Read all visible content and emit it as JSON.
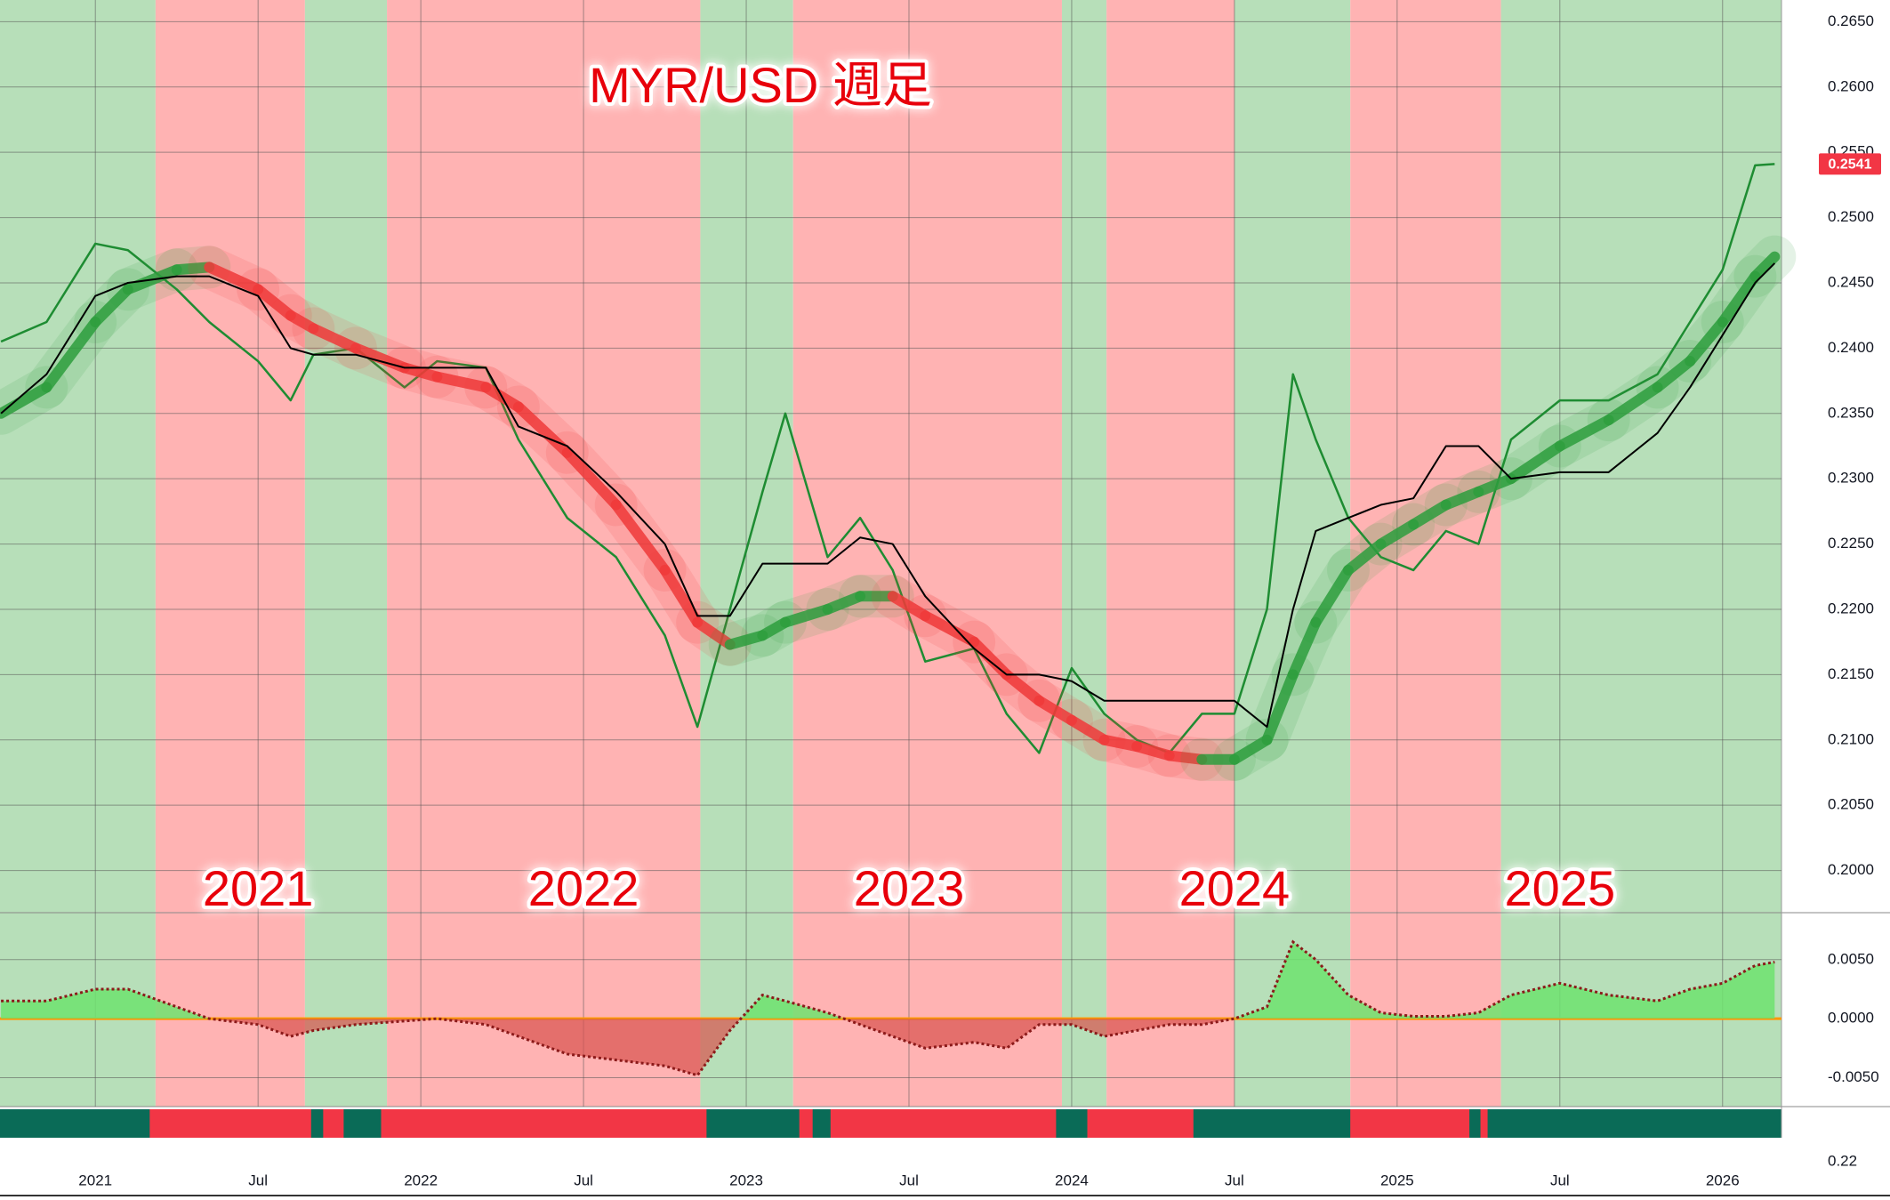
{
  "chart_data": {
    "type": "line",
    "title": "MYR/USD 週足",
    "annotations": [
      "2021",
      "2022",
      "2023",
      "2024",
      "2025"
    ],
    "annotation_color": "#e8000b",
    "x": [
      2020.71,
      2020.85,
      2021.0,
      2021.1,
      2021.25,
      2021.35,
      2021.5,
      2021.6,
      2021.67,
      2021.8,
      2021.95,
      2022.05,
      2022.2,
      2022.3,
      2022.45,
      2022.6,
      2022.75,
      2022.85,
      2022.95,
      2023.05,
      2023.12,
      2023.25,
      2023.35,
      2023.45,
      2023.55,
      2023.7,
      2023.8,
      2023.9,
      2024.0,
      2024.1,
      2024.2,
      2024.3,
      2024.4,
      2024.5,
      2024.6,
      2024.68,
      2024.75,
      2024.85,
      2024.95,
      2025.05,
      2025.15,
      2025.25,
      2025.35,
      2025.5,
      2025.65,
      2025.8,
      2025.9,
      2026.0,
      2026.1,
      2026.16
    ],
    "series": [
      {
        "color": "#1e8c32",
        "width": 2.5,
        "values": [
          0.2405,
          0.242,
          0.248,
          0.2475,
          0.2445,
          0.242,
          0.239,
          0.236,
          0.2395,
          0.24,
          0.237,
          0.239,
          0.2385,
          0.233,
          0.227,
          0.224,
          0.218,
          0.211,
          0.22,
          0.229,
          0.235,
          0.224,
          0.227,
          0.223,
          0.216,
          0.217,
          0.212,
          0.209,
          0.2155,
          0.212,
          0.21,
          0.209,
          0.212,
          0.212,
          0.22,
          0.238,
          0.233,
          0.227,
          0.224,
          0.223,
          0.226,
          0.225,
          0.233,
          0.236,
          0.236,
          0.238,
          0.242,
          0.246,
          0.254,
          0.2541
        ]
      },
      {
        "color": "#2e9e3e",
        "color_down": "#f03a3a",
        "width": 12,
        "style": "ma",
        "values": [
          0.235,
          0.237,
          0.242,
          0.2445,
          0.246,
          0.2462,
          0.2445,
          0.2425,
          0.2415,
          0.24,
          0.2385,
          0.2378,
          0.237,
          0.2355,
          0.232,
          0.228,
          0.223,
          0.219,
          0.2173,
          0.218,
          0.219,
          0.22,
          0.221,
          0.221,
          0.2195,
          0.2175,
          0.215,
          0.213,
          0.2115,
          0.21,
          0.2095,
          0.2088,
          0.2085,
          0.2085,
          0.21,
          0.215,
          0.219,
          0.223,
          0.225,
          0.2265,
          0.228,
          0.229,
          0.23,
          0.2325,
          0.2345,
          0.237,
          0.239,
          0.242,
          0.2455,
          0.247
        ]
      },
      {
        "color": "#000000",
        "width": 2,
        "values": [
          0.235,
          0.238,
          0.244,
          0.245,
          0.2455,
          0.2455,
          0.244,
          0.24,
          0.2395,
          0.2395,
          0.2385,
          0.2385,
          0.2385,
          0.234,
          0.2325,
          0.229,
          0.225,
          0.2195,
          0.2195,
          0.2235,
          0.2235,
          0.2235,
          0.2255,
          0.225,
          0.221,
          0.217,
          0.215,
          0.215,
          0.2145,
          0.213,
          0.213,
          0.213,
          0.213,
          0.213,
          0.211,
          0.22,
          0.226,
          0.227,
          0.228,
          0.2285,
          0.2325,
          0.2325,
          0.23,
          0.2305,
          0.2305,
          0.2335,
          0.237,
          0.241,
          0.245,
          0.2465
        ]
      },
      {
        "color": "#8b1a1a",
        "color_up": "#6fe36f",
        "color_down": "#d9534f",
        "width": 3,
        "axis": "y2",
        "values": [
          0.0015,
          0.0015,
          0.0025,
          0.0025,
          0.001,
          0.0,
          -0.0005,
          -0.0015,
          -0.001,
          -0.0005,
          -0.0002,
          0.0,
          -0.0005,
          -0.0015,
          -0.003,
          -0.0035,
          -0.004,
          -0.0048,
          -0.001,
          0.002,
          0.0015,
          0.0005,
          -0.0005,
          -0.0015,
          -0.0025,
          -0.002,
          -0.0025,
          -0.0005,
          -0.0005,
          -0.0015,
          -0.001,
          -0.0005,
          -0.0005,
          0.0,
          0.001,
          0.0065,
          0.005,
          0.002,
          0.0005,
          0.0002,
          0.0002,
          0.0005,
          0.002,
          0.003,
          0.002,
          0.0015,
          0.0025,
          0.003,
          0.0045,
          0.0048
        ]
      }
    ],
    "xlim": [
      2020.707,
      2026.181
    ],
    "xticks": [
      2021,
      {
        "value": 2021.5,
        "label": "Jul"
      },
      2022,
      {
        "value": 2022.5,
        "label": "Jul"
      },
      2023,
      {
        "value": 2023.5,
        "label": "Jul"
      },
      2024,
      {
        "value": 2024.5,
        "label": "Jul"
      },
      2025,
      {
        "value": 2025.5,
        "label": "Jul"
      },
      2026
    ],
    "ylim": [
      0.19677,
      0.26666
    ],
    "yticks": [
      {
        "value": 0.2,
        "label": "0.2000"
      },
      {
        "value": 0.205,
        "label": "0.2050"
      },
      {
        "value": 0.21,
        "label": "0.2100"
      },
      {
        "value": 0.215,
        "label": "0.2150"
      },
      {
        "value": 0.22,
        "label": "0.2200"
      },
      {
        "value": 0.225,
        "label": "0.2250"
      },
      {
        "value": 0.23,
        "label": "0.2300"
      },
      {
        "value": 0.235,
        "label": "0.2350"
      },
      {
        "value": 0.24,
        "label": "0.2400"
      },
      {
        "value": 0.245,
        "label": "0.2450"
      },
      {
        "value": 0.25,
        "label": "0.2500"
      },
      {
        "value": 0.255,
        "label": "0.2550"
      },
      {
        "value": 0.26,
        "label": "0.2600"
      },
      {
        "value": 0.265,
        "label": "0.2650"
      }
    ],
    "y2lim": [
      -0.00745,
      0.00898
    ],
    "y2ticks": [
      {
        "value": -0.005,
        "label": "-0.0050"
      },
      {
        "value": 0,
        "label": "0.0000"
      },
      {
        "value": 0.005,
        "label": "0.0050"
      }
    ],
    "y2_zero_color": "#ff9800",
    "y3ticks": [
      0.22
    ],
    "grid": true,
    "grid_color": "#555555",
    "last_value_color": "#f23645",
    "regimes": [
      {
        "from": 2020.707,
        "to": 2021.185,
        "color": "#b7dfb9"
      },
      {
        "from": 2021.185,
        "to": 2021.644,
        "color": "#ffb3b3"
      },
      {
        "from": 2021.644,
        "to": 2021.896,
        "color": "#b7dfb9"
      },
      {
        "from": 2021.896,
        "to": 2022.859,
        "color": "#ffb3b3"
      },
      {
        "from": 2022.859,
        "to": 2023.144,
        "color": "#b7dfb9"
      },
      {
        "from": 2023.144,
        "to": 2023.97,
        "color": "#ffb3b3"
      },
      {
        "from": 2023.97,
        "to": 2024.107,
        "color": "#b7dfb9"
      },
      {
        "from": 2024.107,
        "to": 2024.5,
        "color": "#ffb3b3"
      },
      {
        "from": 2024.5,
        "to": 2024.856,
        "color": "#b7dfb9"
      },
      {
        "from": 2024.856,
        "to": 2025.319,
        "color": "#ffb3b3"
      },
      {
        "from": 2025.319,
        "to": 2026.181,
        "color": "#b7dfb9"
      }
    ],
    "strip": [
      {
        "from": 2020.707,
        "to": 2021.167,
        "color": "#0a6b57"
      },
      {
        "from": 2021.167,
        "to": 2021.663,
        "color": "#f23645"
      },
      {
        "from": 2021.663,
        "to": 2021.7,
        "color": "#0a6b57"
      },
      {
        "from": 2021.7,
        "to": 2021.763,
        "color": "#f23645"
      },
      {
        "from": 2021.763,
        "to": 2021.878,
        "color": "#0a6b57"
      },
      {
        "from": 2021.878,
        "to": 2022.878,
        "color": "#f23645"
      },
      {
        "from": 2022.878,
        "to": 2023.163,
        "color": "#0a6b57"
      },
      {
        "from": 2023.163,
        "to": 2023.204,
        "color": "#f23645"
      },
      {
        "from": 2023.204,
        "to": 2023.259,
        "color": "#0a6b57"
      },
      {
        "from": 2023.259,
        "to": 2023.952,
        "color": "#f23645"
      },
      {
        "from": 2023.952,
        "to": 2024.048,
        "color": "#0a6b57"
      },
      {
        "from": 2024.048,
        "to": 2024.374,
        "color": "#f23645"
      },
      {
        "from": 2024.374,
        "to": 2024.856,
        "color": "#0a6b57"
      },
      {
        "from": 2024.856,
        "to": 2025.222,
        "color": "#f23645"
      },
      {
        "from": 2025.222,
        "to": 2025.256,
        "color": "#0a6b57"
      },
      {
        "from": 2025.256,
        "to": 2025.278,
        "color": "#f23645"
      },
      {
        "from": 2025.278,
        "to": 2026.181,
        "color": "#0a6b57"
      }
    ]
  }
}
